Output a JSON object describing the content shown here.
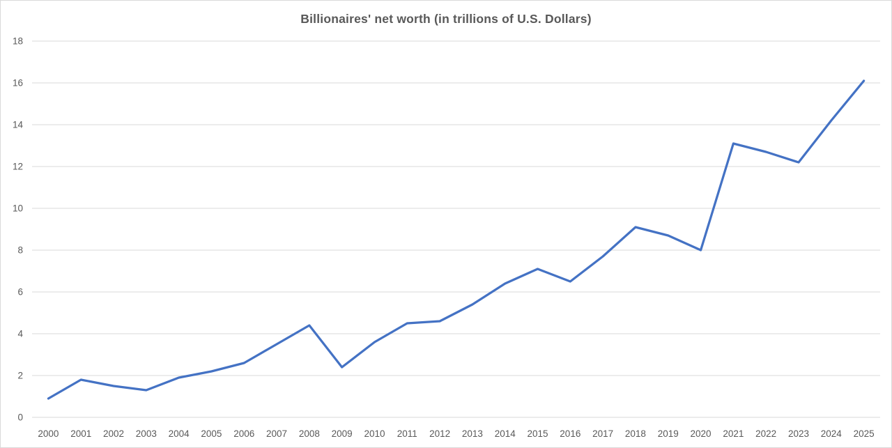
{
  "chart_data": {
    "type": "line",
    "title": "Billionaires' net worth (in trillions of U.S. Dollars)",
    "xlabel": "",
    "ylabel": "",
    "categories": [
      "2000",
      "2001",
      "2002",
      "2003",
      "2004",
      "2005",
      "2006",
      "2007",
      "2008",
      "2009",
      "2010",
      "2011",
      "2012",
      "2013",
      "2014",
      "2015",
      "2016",
      "2017",
      "2018",
      "2019",
      "2020",
      "2021",
      "2022",
      "2023",
      "2024",
      "2025"
    ],
    "series": [
      {
        "name": "Billionaires' net worth",
        "values": [
          0.9,
          1.8,
          1.5,
          1.3,
          1.9,
          2.2,
          2.6,
          3.5,
          4.4,
          2.4,
          3.6,
          4.5,
          4.6,
          5.4,
          6.4,
          7.1,
          6.5,
          7.7,
          9.1,
          8.7,
          8.0,
          13.1,
          12.7,
          12.2,
          14.2,
          16.1
        ]
      }
    ],
    "ylim": [
      0,
      18
    ],
    "y_ticks": [
      0,
      2,
      4,
      6,
      8,
      10,
      12,
      14,
      16,
      18
    ],
    "grid": "horizontal",
    "legend": "none",
    "colors": {
      "line": "#4472C4",
      "gridline": "#D9D9D9",
      "tick_label": "#595959",
      "title": "#595959",
      "background": "#FFFFFF",
      "frame_border": "#D9D9D9"
    }
  }
}
